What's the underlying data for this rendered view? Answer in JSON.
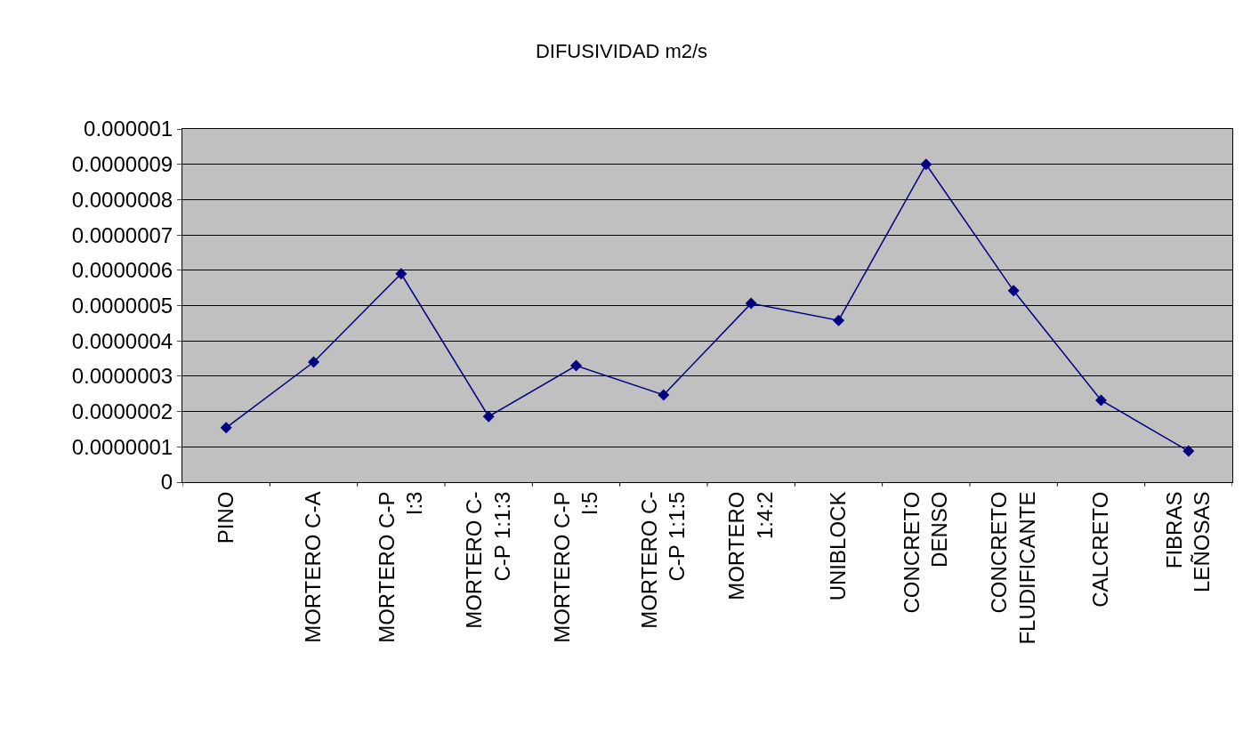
{
  "chart_data": {
    "type": "line",
    "title": "DIFUSIVIDAD m2/s",
    "categories": [
      "PINO",
      "MORTERO C-A",
      "MORTERO C-P\nI:3",
      "MORTERO C-\nC-P 1:1:3",
      "MORTERO C-P\nI:5",
      "MORTERO C-\nC-P 1:1:5",
      "MORTERO\n1:4:2",
      "UNIBLOCK",
      "CONCRETO\nDENSO",
      "CONCRETO\nFLUDIFICANTE",
      "CALCRETO",
      "FIBRAS\nLEÑOSAS"
    ],
    "series": [
      {
        "color": "#000080",
        "values": [
          1.54e-07,
          3.4e-07,
          5.9e-07,
          1.86e-07,
          3.3e-07,
          2.47e-07,
          5.06e-07,
          4.58e-07,
          9e-07,
          5.42e-07,
          2.32e-07,
          8.8e-08
        ]
      }
    ],
    "ylim": [
      0,
      1e-06
    ],
    "yticks": [
      {
        "value": 0,
        "label": "0"
      },
      {
        "value": 1e-07,
        "label": "0.0000001"
      },
      {
        "value": 2e-07,
        "label": "0.0000002"
      },
      {
        "value": 3e-07,
        "label": "0.0000003"
      },
      {
        "value": 4e-07,
        "label": "0.0000004"
      },
      {
        "value": 5e-07,
        "label": "0.0000005"
      },
      {
        "value": 6e-07,
        "label": "0.0000006"
      },
      {
        "value": 7e-07,
        "label": "0.0000007"
      },
      {
        "value": 8e-07,
        "label": "0.0000008"
      },
      {
        "value": 9e-07,
        "label": "0.0000009"
      },
      {
        "value": 1e-06,
        "label": "0.000001"
      }
    ],
    "grid": "y",
    "legend": false,
    "marker": "diamond",
    "line_style": "solid"
  }
}
